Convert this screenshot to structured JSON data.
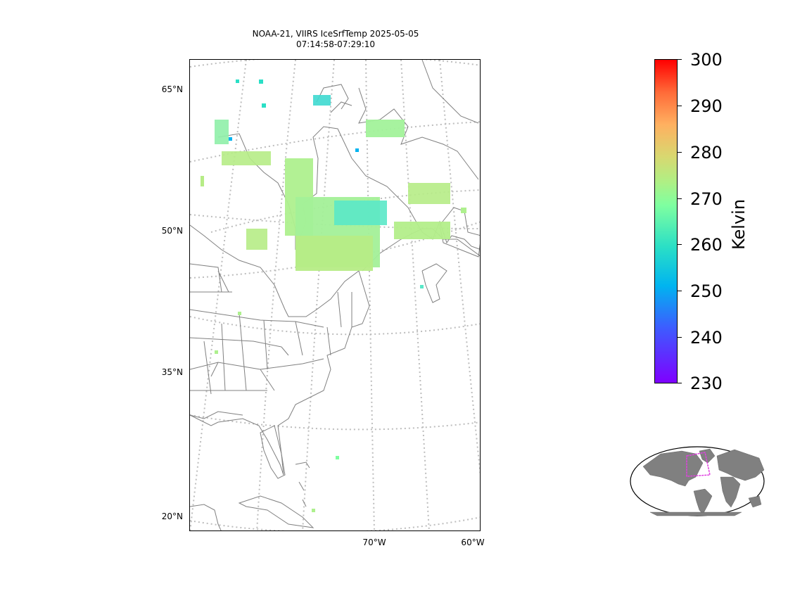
{
  "title": {
    "line1": "NOAA-21, VIIRS IceSrfTemp 2025-05-05",
    "line2": "07:14:58-07:29:10"
  },
  "map": {
    "lat_labels": [
      "65°N",
      "50°N",
      "35°N",
      "20°N"
    ],
    "lon_labels": [
      "70°W",
      "60°W"
    ],
    "coastline_color": "#808080",
    "gridline_color": "#bdbdbd"
  },
  "colorbar": {
    "label": "Kelvin",
    "ticks": [
      "300",
      "290",
      "280",
      "270",
      "260",
      "250",
      "240",
      "230"
    ],
    "range": [
      230,
      300
    ],
    "colormap": "rainbow"
  },
  "inset": {
    "region_box_color": "#e040e0",
    "land_color": "#808080"
  }
}
